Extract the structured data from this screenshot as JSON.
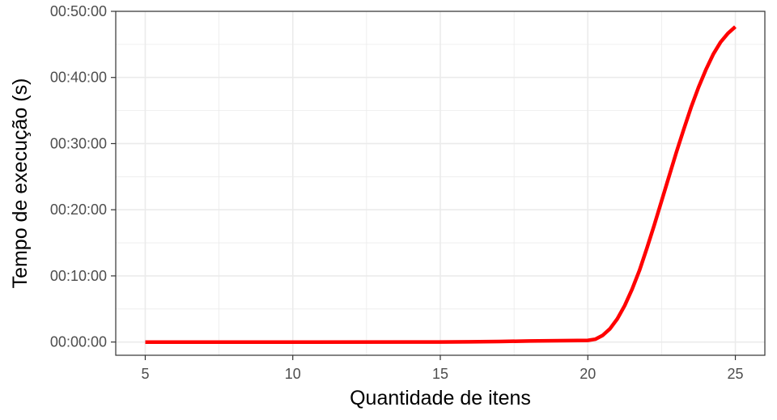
{
  "chart_data": {
    "type": "line",
    "title": "",
    "xlabel": "Quantidade de itens",
    "ylabel": "Tempo de execução (s)",
    "xlim": [
      4,
      26
    ],
    "ylim": [
      -120,
      3000
    ],
    "x_ticks": [
      5,
      10,
      15,
      20,
      25
    ],
    "x_tick_labels": [
      "5",
      "10",
      "15",
      "20",
      "25"
    ],
    "y_ticks": [
      0,
      600,
      1200,
      1800,
      2400,
      3000
    ],
    "y_tick_labels": [
      "00:00:00",
      "00:10:00",
      "00:20:00",
      "00:30:00",
      "00:40:00",
      "00:50:00"
    ],
    "grid": true,
    "legend": "none",
    "series": [
      {
        "color": "#ff0000",
        "x": [
          5,
          10,
          15,
          16,
          17,
          18,
          19,
          20,
          20.25,
          20.5,
          20.75,
          21,
          21.25,
          21.5,
          21.75,
          22,
          22.25,
          22.5,
          22.75,
          23,
          23.25,
          23.5,
          23.75,
          24,
          24.25,
          24.5,
          24.75,
          25
        ],
        "y": [
          0,
          0,
          0.5,
          2,
          5,
          9,
          12,
          15,
          25,
          60,
          120,
          210,
          330,
          480,
          650,
          850,
          1060,
          1280,
          1500,
          1720,
          1930,
          2130,
          2310,
          2470,
          2610,
          2720,
          2800,
          2860
        ]
      }
    ]
  }
}
